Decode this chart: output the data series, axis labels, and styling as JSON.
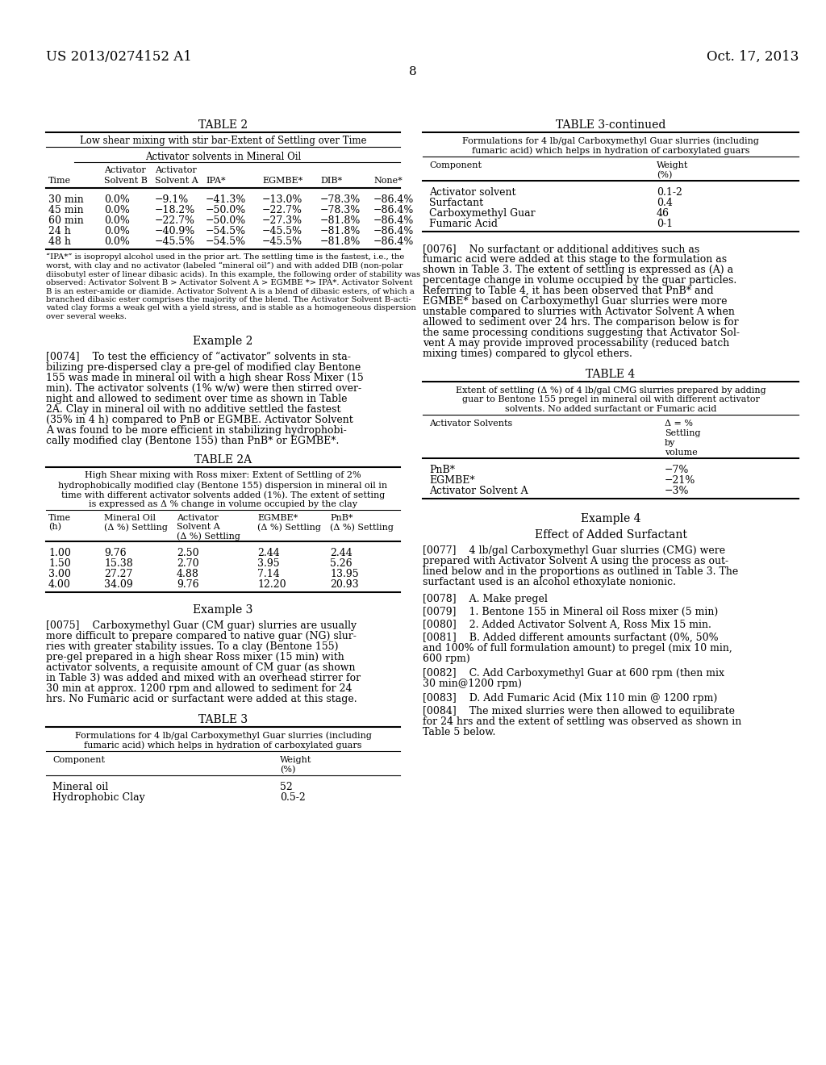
{
  "bg_color": "#ffffff",
  "header_left": "US 2013/0274152 A1",
  "header_right": "Oct. 17, 2013",
  "page_number": "8"
}
